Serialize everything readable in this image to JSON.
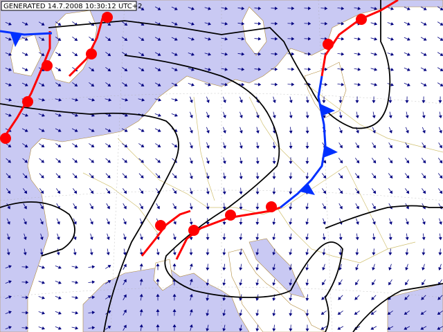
{
  "header": {
    "title": "GENERATED 14.7.2008 10:30:12 UTC+2"
  }
}
